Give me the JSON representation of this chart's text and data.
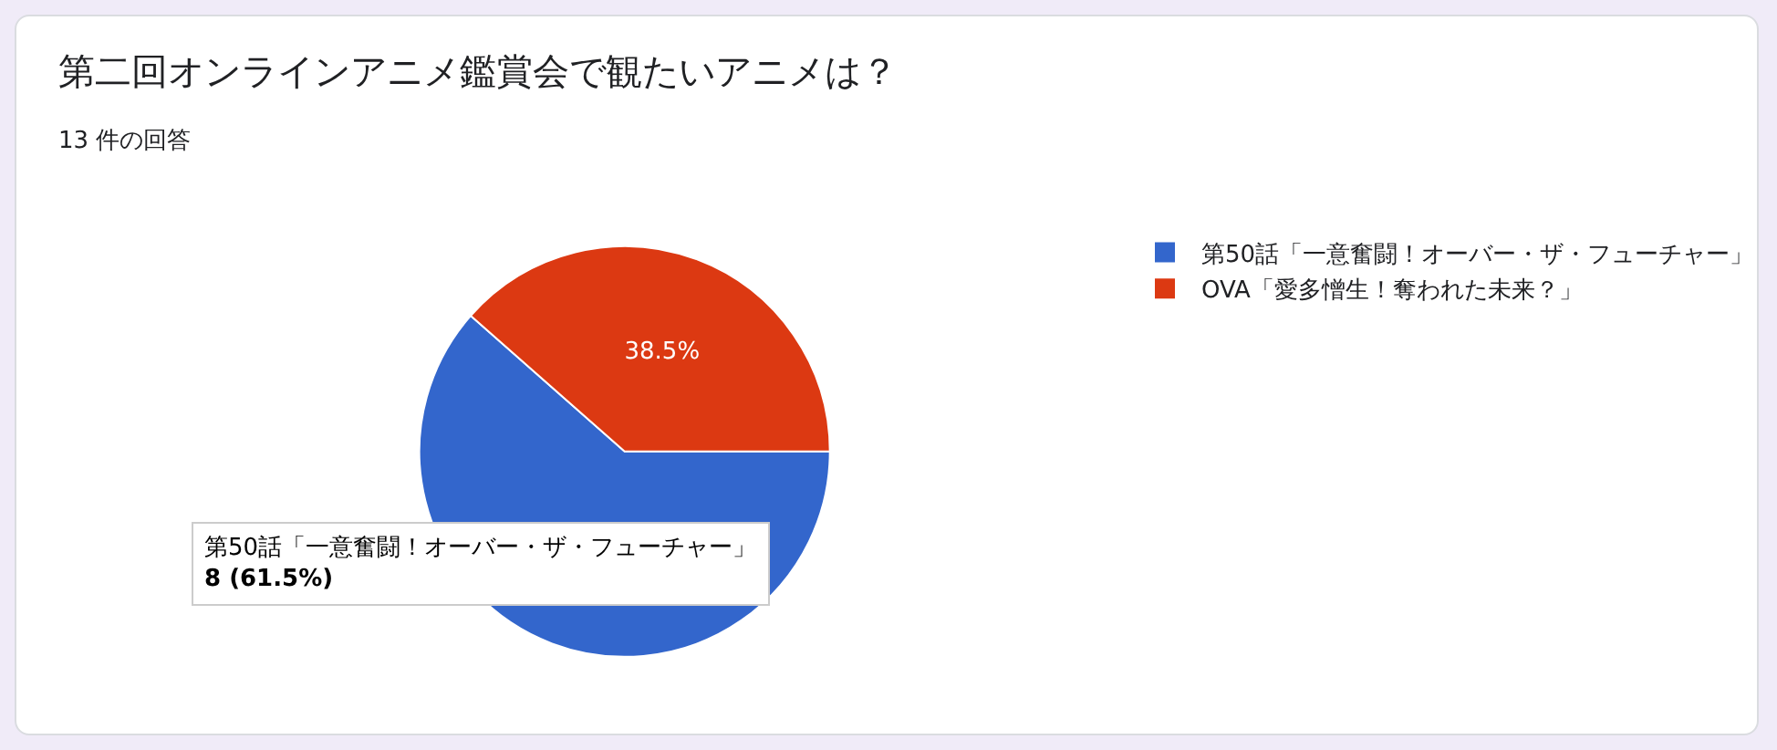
{
  "chart_data": {
    "type": "pie",
    "title": "第二回オンラインアニメ鑑賞会で観たいアニメは？",
    "subtitle": "13 件の回答",
    "categories": [
      "第50話「一意奮闘！オーバー・ザ・フューチャー」",
      "OVA「愛多憎生！奪われた未来？」"
    ],
    "values": [
      61.5,
      38.5
    ],
    "colors": [
      "#3366cc",
      "#dc3912"
    ],
    "value_labels": [
      null,
      "38.5%"
    ],
    "legend": "right",
    "annotations": [
      "第50話「一意奮闘！オーバー・ザ・フューチャー」\n8 (61.5%)"
    ]
  }
}
